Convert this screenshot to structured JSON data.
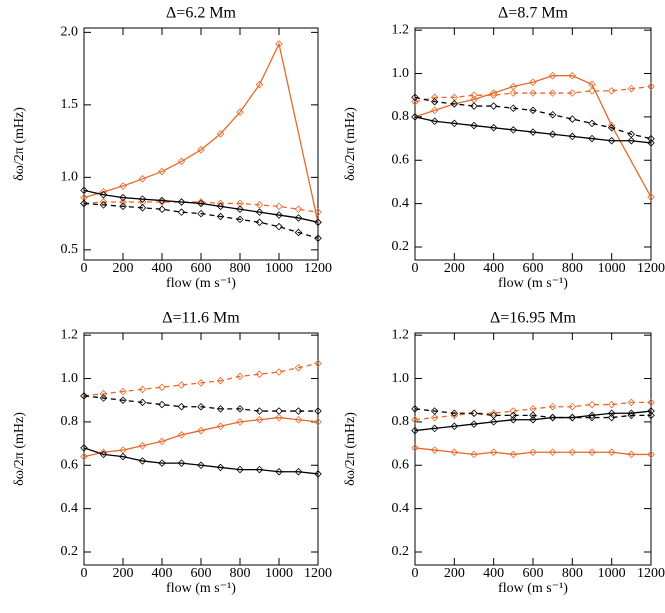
{
  "chart_data": [
    {
      "type": "line",
      "title": "Δ=6.2 Mm",
      "x_label": "flow (m s⁻¹)",
      "y_label": "δω/2π (mHz)",
      "xlim": [
        0,
        1200
      ],
      "xticks": [
        0,
        200,
        400,
        600,
        800,
        1000,
        1200
      ],
      "ylim": [
        0.43,
        2.03
      ],
      "yticks": [
        0.5,
        {
          "value": 1.0,
          "label": "1.0"
        },
        1.5,
        {
          "value": 2.0,
          "label": "2.0"
        }
      ],
      "series": [
        {
          "color": "#e8692a",
          "dash": false,
          "x": [
            0,
            100,
            200,
            300,
            400,
            500,
            600,
            700,
            800,
            900,
            1000,
            1200
          ],
          "values": [
            0.86,
            0.9,
            0.94,
            0.99,
            1.04,
            1.11,
            1.19,
            1.3,
            1.45,
            1.64,
            1.92,
            0.69
          ]
        },
        {
          "color": "#e8692a",
          "dash": true,
          "x": [
            0,
            100,
            200,
            300,
            400,
            500,
            600,
            700,
            800,
            900,
            1000,
            1100,
            1200
          ],
          "values": [
            0.82,
            0.83,
            0.83,
            0.83,
            0.83,
            0.83,
            0.83,
            0.82,
            0.82,
            0.81,
            0.8,
            0.78,
            0.76
          ]
        },
        {
          "color": "#000000",
          "dash": false,
          "x": [
            0,
            100,
            200,
            300,
            400,
            500,
            600,
            700,
            800,
            900,
            1000,
            1100,
            1200
          ],
          "values": [
            0.91,
            0.88,
            0.86,
            0.85,
            0.84,
            0.83,
            0.82,
            0.8,
            0.78,
            0.76,
            0.74,
            0.72,
            0.69
          ]
        },
        {
          "color": "#000000",
          "dash": true,
          "x": [
            0,
            100,
            200,
            300,
            400,
            500,
            600,
            700,
            800,
            900,
            1000,
            1100,
            1200
          ],
          "values": [
            0.82,
            0.81,
            0.8,
            0.79,
            0.78,
            0.76,
            0.75,
            0.73,
            0.71,
            0.69,
            0.66,
            0.62,
            0.58
          ]
        }
      ]
    },
    {
      "type": "line",
      "title": "Δ=8.7 Mm",
      "x_label": "flow (m s⁻¹)",
      "y_label": "δω/2π (mHz)",
      "xlim": [
        0,
        1200
      ],
      "xticks": [
        0,
        200,
        400,
        600,
        800,
        1000,
        1200
      ],
      "ylim": [
        0.14,
        1.21
      ],
      "yticks": [
        0.2,
        0.4,
        0.6,
        0.8,
        {
          "value": 1.0,
          "label": "1.0"
        },
        1.2
      ],
      "series": [
        {
          "color": "#e8692a",
          "dash": false,
          "x": [
            0,
            100,
            200,
            300,
            400,
            500,
            600,
            700,
            800,
            900,
            1000,
            1200
          ],
          "values": [
            0.8,
            0.83,
            0.86,
            0.88,
            0.91,
            0.94,
            0.96,
            0.99,
            0.99,
            0.95,
            0.76,
            0.43
          ]
        },
        {
          "color": "#e8692a",
          "dash": true,
          "x": [
            0,
            100,
            200,
            300,
            400,
            500,
            600,
            700,
            800,
            900,
            1000,
            1100,
            1200
          ],
          "values": [
            0.87,
            0.89,
            0.89,
            0.9,
            0.9,
            0.91,
            0.91,
            0.91,
            0.91,
            0.92,
            0.92,
            0.93,
            0.94
          ]
        },
        {
          "color": "#000000",
          "dash": true,
          "x": [
            0,
            100,
            200,
            300,
            400,
            500,
            600,
            700,
            800,
            900,
            1000,
            1100,
            1200
          ],
          "values": [
            0.89,
            0.87,
            0.86,
            0.85,
            0.85,
            0.84,
            0.83,
            0.81,
            0.79,
            0.77,
            0.75,
            0.72,
            0.7
          ]
        },
        {
          "color": "#000000",
          "dash": false,
          "x": [
            0,
            100,
            200,
            300,
            400,
            500,
            600,
            700,
            800,
            900,
            1000,
            1100,
            1200
          ],
          "values": [
            0.8,
            0.78,
            0.77,
            0.76,
            0.75,
            0.74,
            0.73,
            0.72,
            0.71,
            0.7,
            0.69,
            0.69,
            0.68
          ]
        }
      ]
    },
    {
      "type": "line",
      "title": "Δ=11.6 Mm",
      "x_label": "flow (m s⁻¹)",
      "y_label": "δω/2π (mHz)",
      "xlim": [
        0,
        1200
      ],
      "xticks": [
        0,
        200,
        400,
        600,
        800,
        1000,
        1200
      ],
      "ylim": [
        0.14,
        1.21
      ],
      "yticks": [
        0.2,
        0.4,
        0.6,
        0.8,
        {
          "value": 1.0,
          "label": "1.0"
        },
        1.2
      ],
      "series": [
        {
          "color": "#e8692a",
          "dash": true,
          "x": [
            0,
            100,
            200,
            300,
            400,
            500,
            600,
            700,
            800,
            900,
            1000,
            1100,
            1200
          ],
          "values": [
            0.92,
            0.93,
            0.94,
            0.95,
            0.96,
            0.97,
            0.98,
            0.99,
            1.01,
            1.02,
            1.03,
            1.05,
            1.07
          ]
        },
        {
          "color": "#000000",
          "dash": true,
          "x": [
            0,
            100,
            200,
            300,
            400,
            500,
            600,
            700,
            800,
            900,
            1000,
            1100,
            1200
          ],
          "values": [
            0.92,
            0.91,
            0.9,
            0.89,
            0.88,
            0.87,
            0.87,
            0.86,
            0.86,
            0.85,
            0.85,
            0.85,
            0.85
          ]
        },
        {
          "color": "#e8692a",
          "dash": false,
          "x": [
            0,
            100,
            200,
            300,
            400,
            500,
            600,
            700,
            800,
            900,
            1000,
            1100,
            1200
          ],
          "values": [
            0.64,
            0.66,
            0.67,
            0.69,
            0.71,
            0.74,
            0.76,
            0.78,
            0.8,
            0.81,
            0.82,
            0.81,
            0.8
          ]
        },
        {
          "color": "#000000",
          "dash": false,
          "x": [
            0,
            100,
            200,
            300,
            400,
            500,
            600,
            700,
            800,
            900,
            1000,
            1100,
            1200
          ],
          "values": [
            0.68,
            0.65,
            0.64,
            0.62,
            0.61,
            0.61,
            0.6,
            0.59,
            0.58,
            0.58,
            0.57,
            0.57,
            0.56
          ]
        }
      ]
    },
    {
      "type": "line",
      "title": "Δ=16.95 Mm",
      "x_label": "flow (m s⁻¹)",
      "y_label": "δω/2π (mHz)",
      "xlim": [
        0,
        1200
      ],
      "xticks": [
        0,
        200,
        400,
        600,
        800,
        1000,
        1200
      ],
      "ylim": [
        0.14,
        1.21
      ],
      "yticks": [
        0.2,
        0.4,
        0.6,
        0.8,
        {
          "value": 1.0,
          "label": "1.0"
        },
        1.2
      ],
      "series": [
        {
          "color": "#e8692a",
          "dash": true,
          "x": [
            0,
            100,
            200,
            300,
            400,
            500,
            600,
            700,
            800,
            900,
            1000,
            1100,
            1200
          ],
          "values": [
            0.81,
            0.82,
            0.83,
            0.84,
            0.84,
            0.85,
            0.86,
            0.87,
            0.87,
            0.88,
            0.88,
            0.89,
            0.89
          ]
        },
        {
          "color": "#000000",
          "dash": true,
          "x": [
            0,
            100,
            200,
            300,
            400,
            500,
            600,
            700,
            800,
            900,
            1000,
            1100,
            1200
          ],
          "values": [
            0.86,
            0.85,
            0.84,
            0.84,
            0.83,
            0.83,
            0.83,
            0.82,
            0.82,
            0.82,
            0.82,
            0.83,
            0.83
          ]
        },
        {
          "color": "#000000",
          "dash": false,
          "x": [
            0,
            100,
            200,
            300,
            400,
            500,
            600,
            700,
            800,
            900,
            1000,
            1100,
            1200
          ],
          "values": [
            0.76,
            0.77,
            0.78,
            0.79,
            0.8,
            0.81,
            0.81,
            0.82,
            0.82,
            0.83,
            0.84,
            0.84,
            0.85
          ]
        },
        {
          "color": "#e8692a",
          "dash": false,
          "x": [
            0,
            100,
            200,
            300,
            400,
            500,
            600,
            700,
            800,
            900,
            1000,
            1100,
            1200
          ],
          "values": [
            0.68,
            0.67,
            0.66,
            0.65,
            0.66,
            0.65,
            0.66,
            0.66,
            0.66,
            0.66,
            0.66,
            0.65,
            0.65
          ]
        }
      ]
    }
  ]
}
